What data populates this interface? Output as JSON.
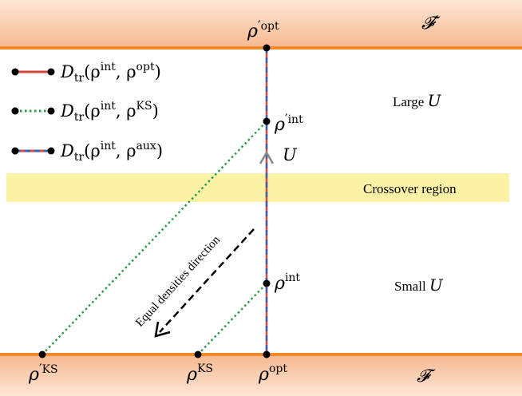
{
  "bands": {
    "top_label": "𝓕′",
    "bottom_label": "𝓕",
    "crossover_label": "Crossover region",
    "colors": {
      "band_orange": "#f08a2a",
      "band_light": "#fbd9c2",
      "crossover_yellow": "#fbf2a6"
    }
  },
  "regions": {
    "large": {
      "prefix": "Large",
      "var": "U"
    },
    "small": {
      "prefix": "Small",
      "var": "U"
    }
  },
  "axis_label": "U",
  "direction_label": "Equal densities direction",
  "points": {
    "rho_prime_opt": {
      "base": "ρ",
      "prime": "′",
      "sup": "opt"
    },
    "rho_prime_int": {
      "base": "ρ",
      "prime": "′",
      "sup": "int"
    },
    "rho_int": {
      "base": "ρ",
      "prime": "",
      "sup": "int"
    },
    "rho_prime_ks": {
      "base": "ρ",
      "prime": "′",
      "sup": "KS"
    },
    "rho_ks": {
      "base": "ρ",
      "prime": "",
      "sup": "KS"
    },
    "rho_opt": {
      "base": "ρ",
      "prime": "",
      "sup": "opt"
    }
  },
  "legend": [
    {
      "fn": "D",
      "sub": "tr",
      "open": "(ρ",
      "sup1": "int",
      "mid": ", ρ",
      "sup2": "opt",
      "close": ")",
      "style": "solid",
      "color": "#d9463a"
    },
    {
      "fn": "D",
      "sub": "tr",
      "open": "(ρ",
      "sup1": "int",
      "mid": ", ρ",
      "sup2": "KS",
      "close": ")",
      "style": "dotted",
      "color": "#2e9a4a"
    },
    {
      "fn": "D",
      "sub": "tr",
      "open": "(ρ",
      "sup1": "int",
      "mid": ", ρ",
      "sup2": "aux",
      "close": ")",
      "style": "dashed",
      "color": "#3b62b0"
    }
  ]
}
